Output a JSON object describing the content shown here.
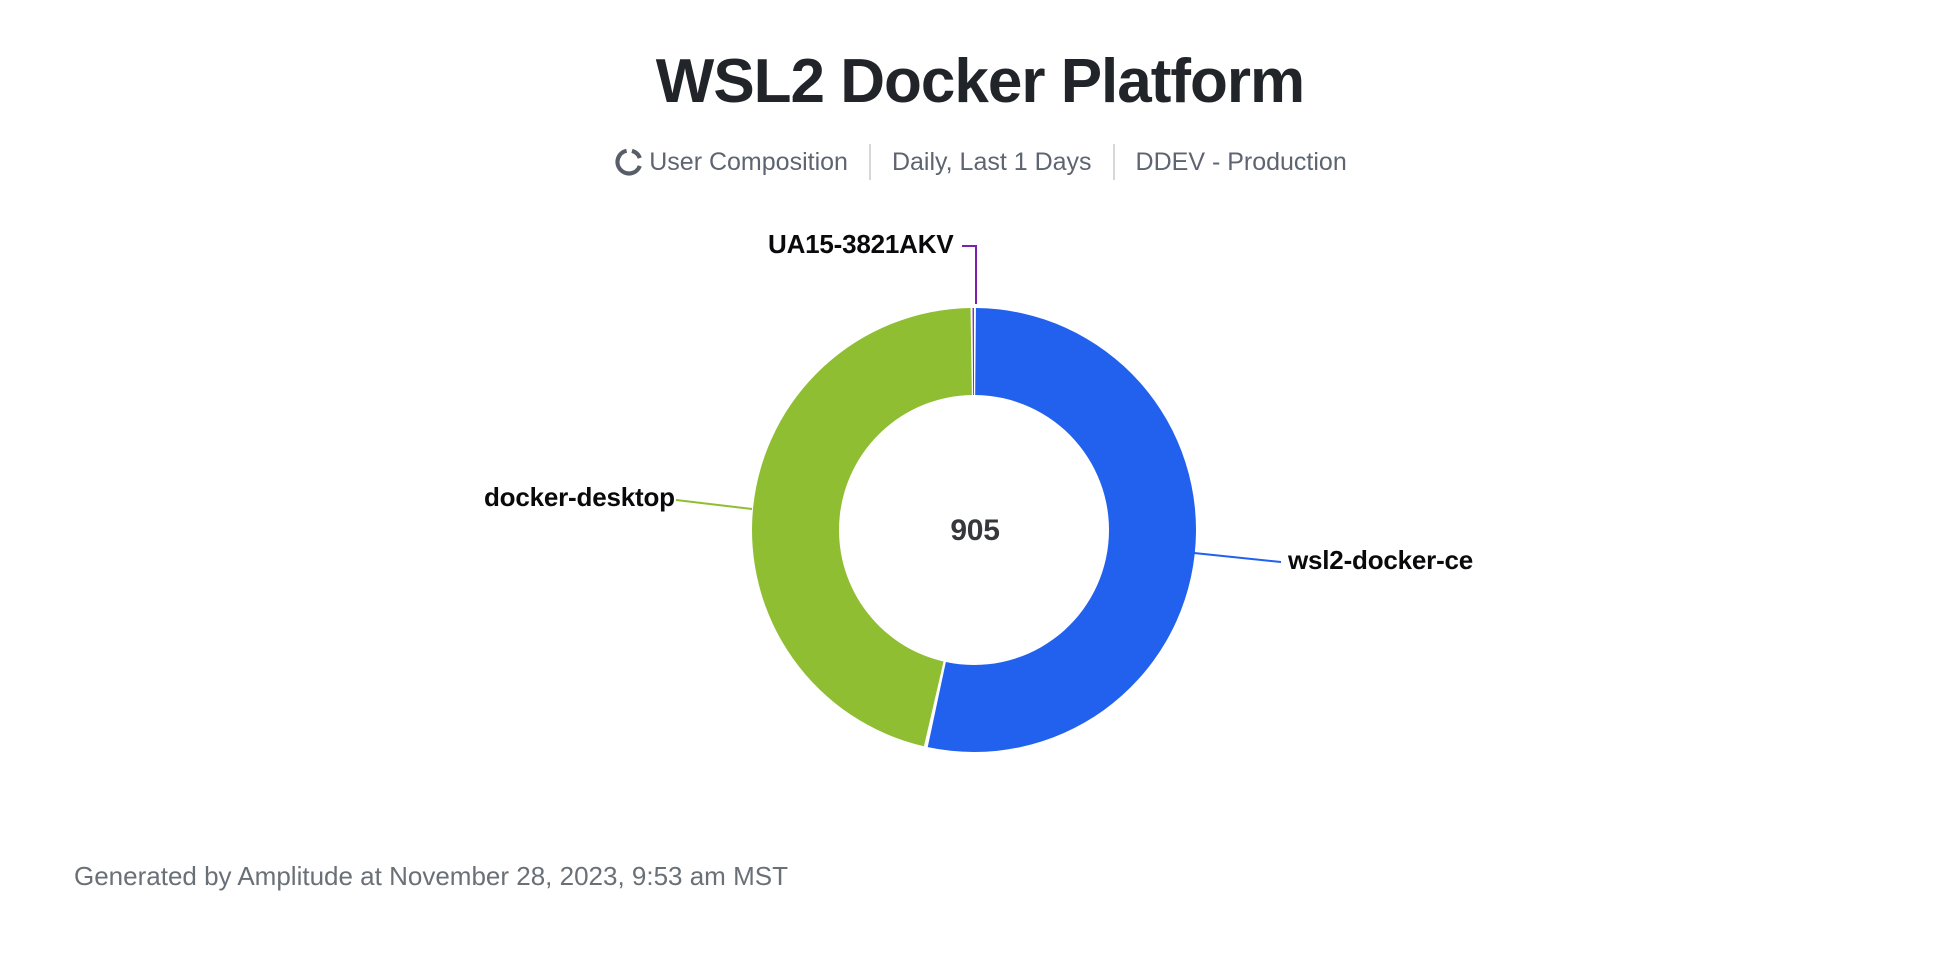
{
  "header": {
    "title": "WSL2 Docker Platform",
    "subtitle": {
      "chart_type_label": "User Composition",
      "date_range_label": "Daily, Last 1 Days",
      "project_label": "DDEV - Production"
    }
  },
  "chart_data": {
    "type": "pie",
    "subtype": "donut",
    "title": "WSL2 Docker Platform",
    "center_total": "905",
    "total": 905,
    "categories": [
      "wsl2-docker-ce",
      "docker-desktop",
      "UA15-3821AKV"
    ],
    "values": [
      484,
      420,
      1
    ],
    "percentages": [
      53.5,
      46.4,
      0.1
    ],
    "colors": [
      "#2161ee",
      "#8fbe33",
      "#7e1fae"
    ],
    "start_angle_deg": 0,
    "direction": "clockwise",
    "inner_radius_ratio": 0.61,
    "labels_shown_as": "callout-labels",
    "legend_position": "none"
  },
  "footer": {
    "generated_text": "Generated by Amplitude at November 28, 2023, 9:53 am MST"
  }
}
